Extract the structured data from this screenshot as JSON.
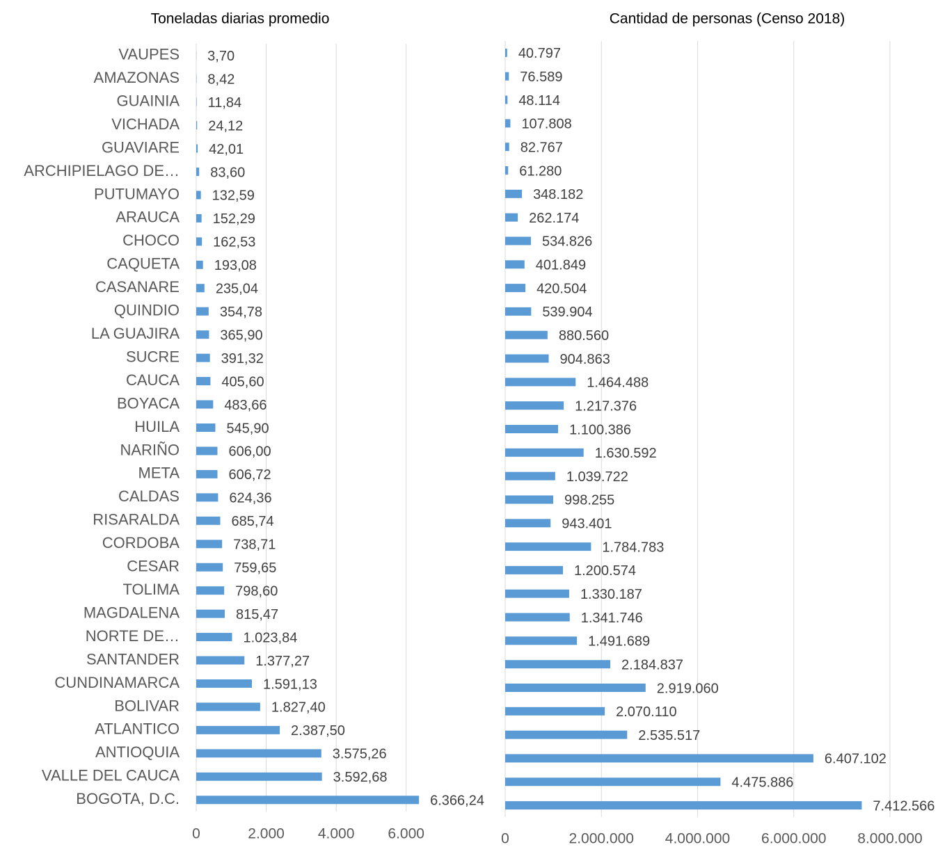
{
  "chart_data": [
    {
      "type": "barh",
      "title": "Toneladas diarias promedio",
      "categories": [
        "VAUPES",
        "AMAZONAS",
        "GUAINIA",
        "VICHADA",
        "GUAVIARE",
        "ARCHIPIELAGO DE…",
        "PUTUMAYO",
        "ARAUCA",
        "CHOCO",
        "CAQUETA",
        "CASANARE",
        "QUINDIO",
        "LA GUAJIRA",
        "SUCRE",
        "CAUCA",
        "BOYACA",
        "HUILA",
        "NARIÑO",
        "META",
        "CALDAS",
        "RISARALDA",
        "CORDOBA",
        "CESAR",
        "TOLIMA",
        "MAGDALENA",
        "NORTE DE…",
        "SANTANDER",
        "CUNDINAMARCA",
        "BOLIVAR",
        "ATLANTICO",
        "ANTIOQUIA",
        "VALLE DEL CAUCA",
        "BOGOTA, D.C."
      ],
      "values": [
        3.7,
        8.42,
        11.84,
        24.12,
        42.01,
        83.6,
        132.59,
        152.29,
        162.53,
        193.08,
        235.04,
        354.78,
        365.9,
        391.32,
        405.6,
        483.66,
        545.9,
        606.0,
        606.72,
        624.36,
        685.74,
        738.71,
        759.65,
        798.6,
        815.47,
        1023.84,
        1377.27,
        1591.13,
        1827.4,
        2387.5,
        3575.26,
        3592.68,
        6366.24
      ],
      "value_labels": [
        "3,70",
        "8,42",
        "11,84",
        "24,12",
        "42,01",
        "83,60",
        "132,59",
        "152,29",
        "162,53",
        "193,08",
        "235,04",
        "354,78",
        "365,90",
        "391,32",
        "405,60",
        "483,66",
        "545,90",
        "606,00",
        "606,72",
        "624,36",
        "685,74",
        "738,71",
        "759,65",
        "798,60",
        "815,47",
        "1.023,84",
        "1.377,27",
        "1.591,13",
        "1.827,40",
        "2.387,50",
        "3.575,26",
        "3.592,68",
        "6.366,24"
      ],
      "color": "#5b9bd5",
      "xlim": [
        0,
        7000
      ],
      "xticks": [
        0,
        {
          "value": 2000,
          "label": "2.000"
        },
        {
          "value": 4000,
          "label": "4.000"
        },
        {
          "value": 6000,
          "label": "6.000"
        }
      ],
      "grid": true
    },
    {
      "type": "barh",
      "title": "Cantidad de personas (Censo 2018)",
      "values": [
        40797,
        76589,
        48114,
        107808,
        82767,
        61280,
        348182,
        262174,
        534826,
        401849,
        420504,
        539904,
        880560,
        904863,
        1464488,
        1217376,
        1100386,
        1630592,
        1039722,
        998255,
        943401,
        1784783,
        1200574,
        1330187,
        1341746,
        1491689,
        2184837,
        2919060,
        2070110,
        2535517,
        6407102,
        4475886,
        7412566
      ],
      "value_labels": [
        "40.797",
        "76.589",
        "48.114",
        "107.808",
        "82.767",
        "61.280",
        "348.182",
        "262.174",
        "534.826",
        "401.849",
        "420.504",
        "539.904",
        "880.560",
        "904.863",
        "1.464.488",
        "1.217.376",
        "1.100.386",
        "1.630.592",
        "1.039.722",
        "998.255",
        "943.401",
        "1.784.783",
        "1.200.574",
        "1.330.187",
        "1.341.746",
        "1.491.689",
        "2.184.837",
        "2.919.060",
        "2.070.110",
        "2.535.517",
        "6.407.102",
        "4.475.886",
        "7.412.566"
      ],
      "color": "#5b9bd5",
      "xlim": [
        0,
        8000000
      ],
      "xticks": [
        0,
        {
          "value": 2000000,
          "label": "2.000.000"
        },
        {
          "value": 4000000,
          "label": "4.000.000"
        },
        {
          "value": 6000000,
          "label": "6.000.000"
        },
        {
          "value": 8000000,
          "label": "8.000.000"
        }
      ],
      "grid": true
    }
  ]
}
